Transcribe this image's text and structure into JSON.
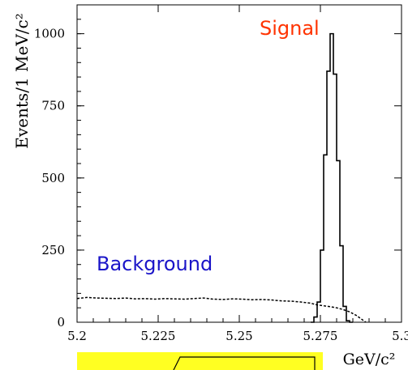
{
  "chart_data": {
    "type": "histogram",
    "title": "",
    "xlabel": "GeV/c²",
    "ylabel": "Events/1 MeV/c²",
    "xlim": [
      5.2,
      5.3
    ],
    "ylim": [
      0,
      1100
    ],
    "x_ticks": [
      5.2,
      5.225,
      5.25,
      5.275,
      5.3
    ],
    "x_tick_labels": [
      "5.2",
      "5.225",
      "5.25",
      "5.275",
      "5.3"
    ],
    "y_ticks": [
      0,
      250,
      500,
      750,
      1000
    ],
    "y_tick_labels": [
      "0",
      "250",
      "500",
      "750",
      "1000"
    ],
    "grid": false,
    "annotations": {
      "signal": "Signal",
      "background": "Background"
    },
    "signal_color": "#ff3300",
    "background_color": "#1a14c8",
    "bin_width": 0.001,
    "series": [
      {
        "name": "Signal",
        "line_style": "solid",
        "bins": [
          {
            "x0": 5.272,
            "value": 0
          },
          {
            "x0": 5.273,
            "value": 18
          },
          {
            "x0": 5.274,
            "value": 70
          },
          {
            "x0": 5.275,
            "value": 250
          },
          {
            "x0": 5.276,
            "value": 580
          },
          {
            "x0": 5.277,
            "value": 870
          },
          {
            "x0": 5.278,
            "value": 1000
          },
          {
            "x0": 5.279,
            "value": 860
          },
          {
            "x0": 5.28,
            "value": 560
          },
          {
            "x0": 5.281,
            "value": 265
          },
          {
            "x0": 5.282,
            "value": 55
          },
          {
            "x0": 5.283,
            "value": 5
          },
          {
            "x0": 5.284,
            "value": 0
          }
        ]
      },
      {
        "name": "Background",
        "line_style": "dashed",
        "points": [
          [
            5.2,
            82
          ],
          [
            5.203,
            86
          ],
          [
            5.206,
            84
          ],
          [
            5.209,
            83
          ],
          [
            5.212,
            82
          ],
          [
            5.215,
            84
          ],
          [
            5.218,
            81
          ],
          [
            5.221,
            82
          ],
          [
            5.224,
            80
          ],
          [
            5.227,
            82
          ],
          [
            5.23,
            81
          ],
          [
            5.233,
            80
          ],
          [
            5.236,
            82
          ],
          [
            5.239,
            84
          ],
          [
            5.242,
            80
          ],
          [
            5.245,
            79
          ],
          [
            5.248,
            81
          ],
          [
            5.251,
            80
          ],
          [
            5.254,
            78
          ],
          [
            5.257,
            79
          ],
          [
            5.26,
            77
          ],
          [
            5.263,
            74
          ],
          [
            5.266,
            73
          ],
          [
            5.269,
            70
          ],
          [
            5.272,
            66
          ],
          [
            5.274,
            60
          ],
          [
            5.276,
            57
          ],
          [
            5.278,
            54
          ],
          [
            5.28,
            50
          ],
          [
            5.282,
            44
          ],
          [
            5.284,
            36
          ],
          [
            5.286,
            24
          ],
          [
            5.288,
            8
          ],
          [
            5.289,
            0
          ]
        ]
      }
    ]
  }
}
